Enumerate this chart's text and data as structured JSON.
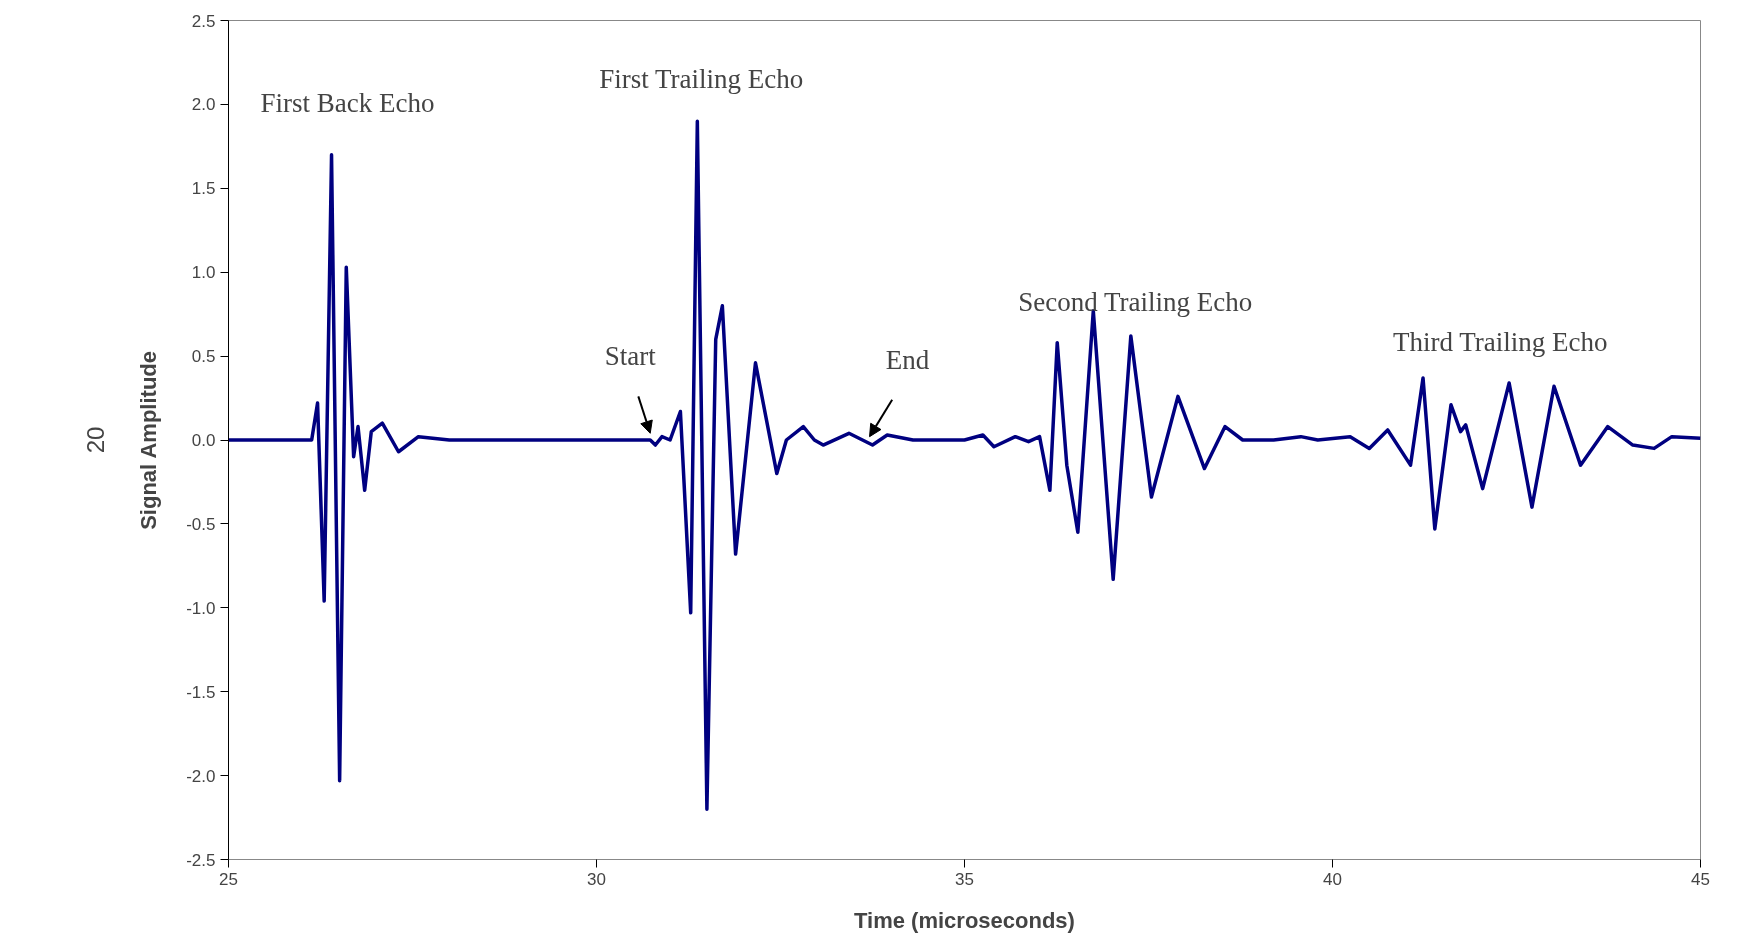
{
  "chart_data": {
    "type": "line",
    "xlabel": "Time (microseconds)",
    "ylabel": "Signal Amplitude",
    "xlim": [
      25,
      45
    ],
    "ylim": [
      -2.5,
      2.5
    ],
    "xticks": [
      25,
      30,
      35,
      40,
      45
    ],
    "yticks": [
      {
        "value": -2.5,
        "label": "-2.5"
      },
      {
        "value": -2,
        "label": "-2.0"
      },
      {
        "value": -1.5,
        "label": "-1.5"
      },
      {
        "value": -1,
        "label": "-1.0"
      },
      {
        "value": -0.5,
        "label": "-0.5"
      },
      {
        "value": 0,
        "label": "0.0"
      },
      {
        "value": 0.5,
        "label": "0.5"
      },
      {
        "value": 1,
        "label": "1.0"
      },
      {
        "value": 1.5,
        "label": "1.5"
      },
      {
        "value": 2,
        "label": "2.0"
      },
      {
        "value": 2.5,
        "label": "2.5"
      }
    ],
    "grid": false,
    "marker": "none",
    "line_style": "solid",
    "series": [
      {
        "color": "#000080",
        "x": [
          25,
          25.5,
          26.0,
          26.13,
          26.21,
          26.3,
          26.4,
          26.51,
          26.6,
          26.7,
          26.76,
          26.85,
          26.94,
          27.09,
          27.31,
          27.58,
          28.0,
          29.0,
          30.0,
          30.73,
          30.8,
          30.89,
          31.0,
          31.14,
          31.28,
          31.37,
          31.5,
          31.62,
          31.71,
          31.89,
          32.16,
          32.45,
          32.58,
          32.81,
          32.96,
          33.08,
          33.43,
          33.75,
          33.95,
          34.3,
          35.0,
          35.25,
          35.4,
          35.69,
          35.87,
          36.02,
          36.16,
          36.26,
          36.39,
          36.54,
          36.75,
          37.02,
          37.26,
          37.54,
          37.9,
          38.26,
          38.54,
          38.78,
          39.2,
          39.57,
          39.8,
          40.24,
          40.5,
          40.75,
          41.06,
          41.23,
          41.39,
          41.61,
          41.74,
          41.81,
          42.04,
          42.4,
          42.71,
          43.01,
          43.37,
          43.74,
          44.08,
          44.37,
          44.61,
          45
        ],
        "values": [
          0,
          0,
          0,
          0,
          0.22,
          -0.96,
          1.7,
          -2.03,
          1.03,
          -0.1,
          0.08,
          -0.3,
          0.05,
          0.1,
          -0.07,
          0.02,
          0,
          0,
          0,
          0,
          -0.03,
          0.02,
          0,
          0.17,
          -1.03,
          1.9,
          -2.2,
          0.6,
          0.8,
          -0.68,
          0.46,
          -0.2,
          0,
          0.08,
          0,
          -0.03,
          0.04,
          -0.03,
          0.03,
          0,
          0,
          0.03,
          -0.04,
          0.02,
          -0.01,
          0.02,
          -0.3,
          0.58,
          -0.15,
          -0.55,
          0.77,
          -0.83,
          0.62,
          -0.34,
          0.26,
          -0.17,
          0.08,
          0,
          0,
          0.02,
          0,
          0.02,
          -0.05,
          0.06,
          -0.15,
          0.37,
          -0.53,
          0.21,
          0.05,
          0.09,
          -0.29,
          0.34,
          -0.4,
          0.32,
          -0.15,
          0.08,
          -0.03,
          -0.05,
          0.02,
          0.01
        ]
      }
    ],
    "annotations": [
      "First Back Echo",
      "First Trailing Echo",
      {
        "text": "Start",
        "x": 30.73,
        "y": 0.04
      },
      {
        "text": "End",
        "x": 33.71,
        "y": 0.02
      },
      "Second Trailing Echo",
      "Third Trailing Echo",
      "20"
    ]
  }
}
